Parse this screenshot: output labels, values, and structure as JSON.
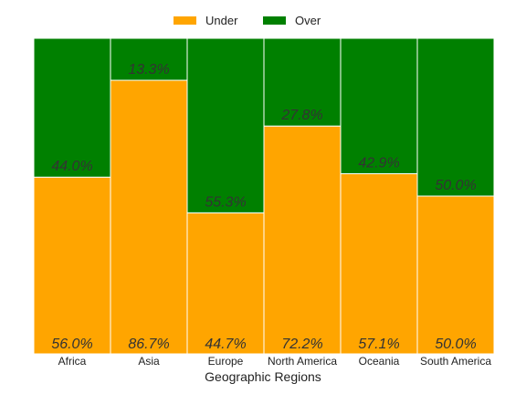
{
  "chart_data": {
    "type": "bar",
    "subtype": "stacked-100-percent",
    "title": "",
    "xlabel": "Geographic Regions",
    "ylabel": "",
    "ylim": [
      0,
      100
    ],
    "grid": false,
    "legend_placement": "top-center",
    "categories": [
      "Africa",
      "Asia",
      "Europe",
      "North America",
      "Oceania",
      "South America"
    ],
    "series": [
      {
        "name": "Under",
        "color": "#FFA500",
        "values": [
          56.0,
          86.7,
          44.7,
          72.2,
          57.1,
          50.0
        ],
        "labels": [
          "56.0%",
          "86.7%",
          "44.7%",
          "72.2%",
          "57.1%",
          "50.0%"
        ]
      },
      {
        "name": "Over",
        "color": "#008000",
        "values": [
          44.0,
          13.3,
          55.3,
          27.8,
          42.9,
          50.0
        ],
        "labels": [
          "44.0%",
          "13.3%",
          "55.3%",
          "27.8%",
          "42.9%",
          "50.0%"
        ]
      }
    ]
  }
}
